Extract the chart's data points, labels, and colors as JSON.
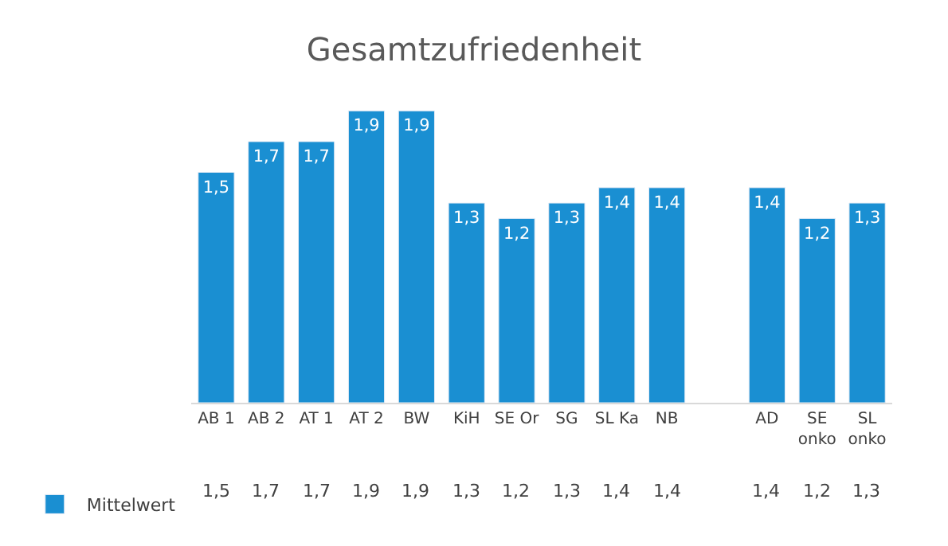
{
  "chart_data": {
    "type": "bar",
    "title": "Gesamtzufriedenheit",
    "categories": [
      "AB 1",
      "AB 2",
      "AT 1",
      "AT 2",
      "BW",
      "KiH",
      "SE Or",
      "SG",
      "SL Ka",
      "NB",
      null,
      "AD",
      "SE onko",
      "SL onko"
    ],
    "series": [
      {
        "name": "Mittelwert",
        "color": "#1a8fd2",
        "values": [
          1.5,
          1.7,
          1.7,
          1.9,
          1.9,
          1.3,
          1.2,
          1.3,
          1.4,
          1.4,
          null,
          1.4,
          1.2,
          1.3
        ],
        "value_labels": [
          "1,5",
          "1,7",
          "1,7",
          "1,9",
          "1,9",
          "1,3",
          "1,2",
          "1,3",
          "1,4",
          "1,4",
          null,
          "1,4",
          "1,2",
          "1,3"
        ]
      }
    ],
    "legend": "bottom left"
  }
}
